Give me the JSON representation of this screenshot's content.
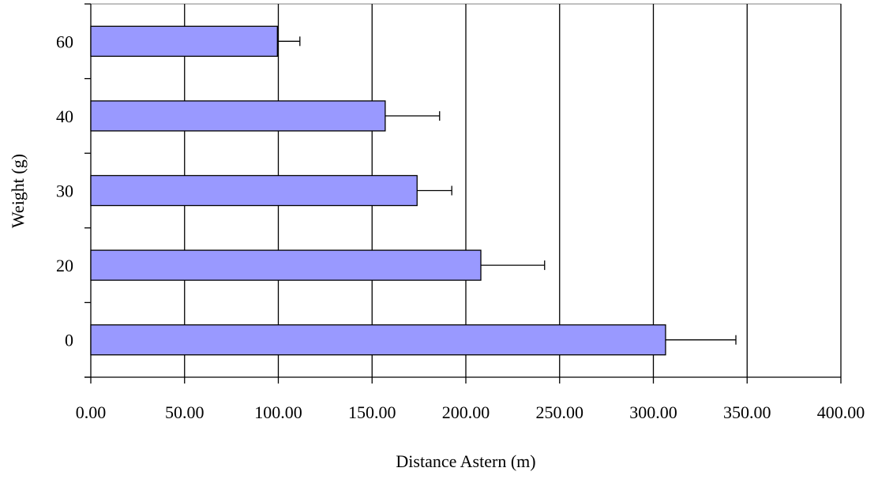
{
  "chart_data": {
    "type": "bar",
    "orientation": "horizontal",
    "title": "",
    "xlabel": "Distance Astern (m)",
    "ylabel": "Weight (g)",
    "categories": [
      "0",
      "20",
      "30",
      "40",
      "60"
    ],
    "values": [
      306.5,
      208.0,
      174.0,
      157.0,
      99.5
    ],
    "error_plus": [
      37.5,
      34.0,
      18.5,
      29.0,
      12.0
    ],
    "xlim": [
      0,
      400
    ],
    "x_ticks": [
      0,
      50,
      100,
      150,
      200,
      250,
      300,
      350,
      400
    ],
    "x_tick_labels": [
      "0.00",
      "50.00",
      "100.00",
      "150.00",
      "200.00",
      "250.00",
      "300.00",
      "350.00",
      "400.00"
    ],
    "grid": "vertical",
    "legend": "none",
    "bar_color": "#9999ff",
    "grid_color": "#000000"
  }
}
